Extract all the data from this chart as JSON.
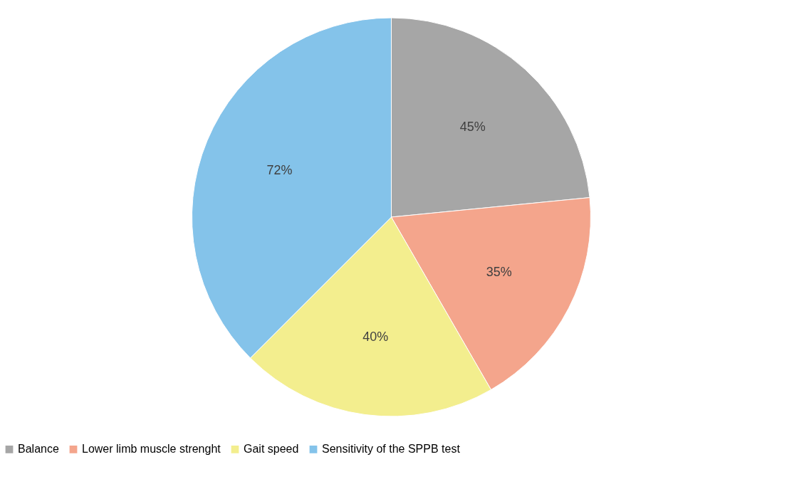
{
  "chart_data": {
    "type": "pie",
    "categories": [
      "Balance",
      "Lower limb muscle strenght",
      "Gait speed",
      "Sensitivity of the SPPB test"
    ],
    "values": [
      45,
      35,
      40,
      72
    ],
    "colors": [
      "#a6a6a6",
      "#f4a58c",
      "#f3ee8e",
      "#84c3ea"
    ],
    "value_labels": [
      "45%",
      "35%",
      "40%",
      "72%"
    ],
    "legend": "bottom"
  }
}
